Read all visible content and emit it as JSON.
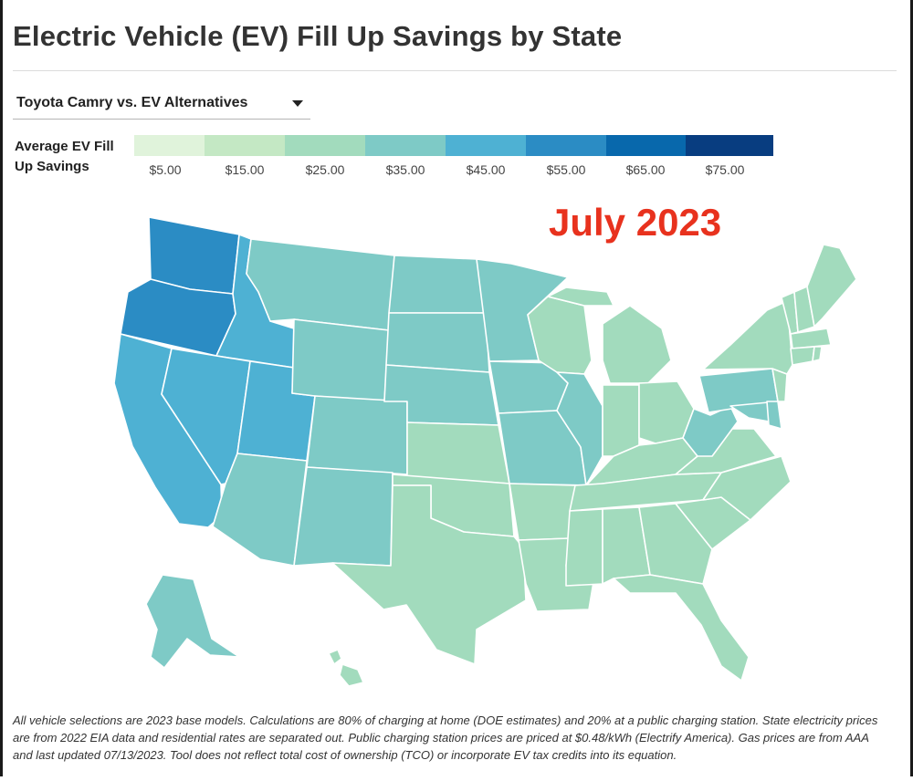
{
  "header": {
    "title": "Electric Vehicle (EV) Fill Up Savings by State"
  },
  "selector": {
    "value": "Toyota Camry vs. EV Alternatives"
  },
  "legend": {
    "title": "Average EV Fill Up Savings",
    "items": [
      {
        "label": "$5.00",
        "color": "#e0f3db"
      },
      {
        "label": "$15.00",
        "color": "#c4e8c4"
      },
      {
        "label": "$25.00",
        "color": "#a2dbbd"
      },
      {
        "label": "$35.00",
        "color": "#7ecac6"
      },
      {
        "label": "$45.00",
        "color": "#4eb1d3"
      },
      {
        "label": "$55.00",
        "color": "#2b8cc4"
      },
      {
        "label": "$65.00",
        "color": "#0868ac"
      },
      {
        "label": "$75.00",
        "color": "#083d80"
      }
    ]
  },
  "stamp": "July 2023",
  "colors": {
    "band_25": "#a2dbbd",
    "band_35": "#7ecac6",
    "band_45": "#4eb1d3",
    "band_55": "#2b8cc4",
    "state_border": "#ffffff"
  },
  "footnote": "All vehicle selections are 2023 base models. Calculations are 80% of charging at home (DOE estimates) and 20% at a public charging station. State electricity prices are from 2022 EIA data and residential rates are separated out. Public charging station prices are priced at $0.48/kWh (Electrify America). Gas prices are from AAA and last updated 07/13/2023. Tool does not reflect total cost of ownership (TCO) or incorporate EV tax credits into its equation."
}
